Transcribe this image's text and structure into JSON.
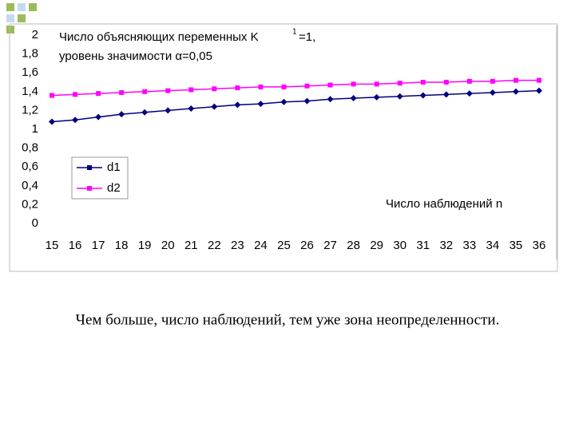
{
  "chart_data": {
    "type": "line",
    "title": "Число объясняющих переменных K",
    "title_superscript": "1",
    "title_suffix": "=1,",
    "subtitle": "уровень значимости α=0,05",
    "x_label": "Число наблюдений n",
    "categories": [
      15,
      16,
      17,
      18,
      19,
      20,
      21,
      22,
      23,
      24,
      25,
      26,
      27,
      28,
      29,
      30,
      31,
      32,
      33,
      34,
      35,
      36
    ],
    "series": [
      {
        "name": "d1",
        "color": "#000080",
        "values": [
          1.08,
          1.1,
          1.13,
          1.16,
          1.18,
          1.2,
          1.22,
          1.24,
          1.26,
          1.27,
          1.29,
          1.3,
          1.32,
          1.33,
          1.34,
          1.35,
          1.36,
          1.37,
          1.38,
          1.39,
          1.4,
          1.41
        ]
      },
      {
        "name": "d2",
        "color": "#ff00ff",
        "values": [
          1.36,
          1.37,
          1.38,
          1.39,
          1.4,
          1.41,
          1.42,
          1.43,
          1.44,
          1.45,
          1.45,
          1.46,
          1.47,
          1.48,
          1.48,
          1.49,
          1.5,
          1.5,
          1.51,
          1.51,
          1.52,
          1.52
        ]
      }
    ],
    "ylim": [
      0,
      2
    ],
    "yticks": [
      0,
      {
        "value": 0.2,
        "label": "0,2"
      },
      {
        "value": 0.4,
        "label": "0,4"
      },
      {
        "value": 0.6,
        "label": "0,6"
      },
      {
        "value": 0.8,
        "label": "0,8"
      },
      1,
      {
        "value": 1.2,
        "label": "1,2"
      },
      {
        "value": 1.4,
        "label": "1,4"
      },
      {
        "value": 1.6,
        "label": "1,6"
      },
      {
        "value": 1.8,
        "label": "1,8"
      },
      2
    ],
    "legend": "left"
  },
  "caption": "Чем больше, число наблюдений, тем уже зона неопределенности."
}
